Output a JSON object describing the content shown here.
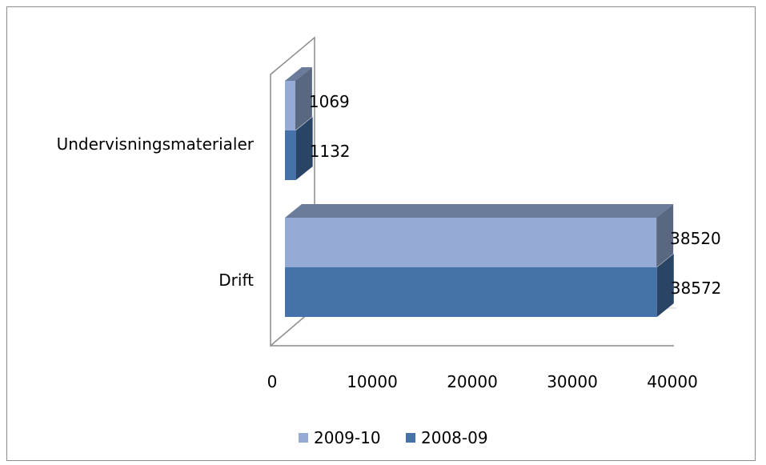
{
  "chart_data": {
    "type": "bar",
    "orientation": "horizontal",
    "style": "3d-clustered",
    "categories": [
      "Undervisningsmaterialer",
      "Drift"
    ],
    "series": [
      {
        "name": "2009-10",
        "values": [
          1069,
          38520
        ],
        "color": "#95abd6"
      },
      {
        "name": "2008-09",
        "values": [
          1132,
          38572
        ],
        "color": "#4672aa"
      }
    ],
    "xlim": [
      0,
      40000
    ],
    "xticks": [
      "0",
      "10000",
      "20000",
      "30000",
      "40000"
    ],
    "data_labels": {
      "Undervisningsmaterialer": [
        "1069",
        "1132"
      ],
      "Drift": [
        "38520",
        "38572"
      ]
    },
    "grid": false,
    "legend_position": "bottom"
  }
}
